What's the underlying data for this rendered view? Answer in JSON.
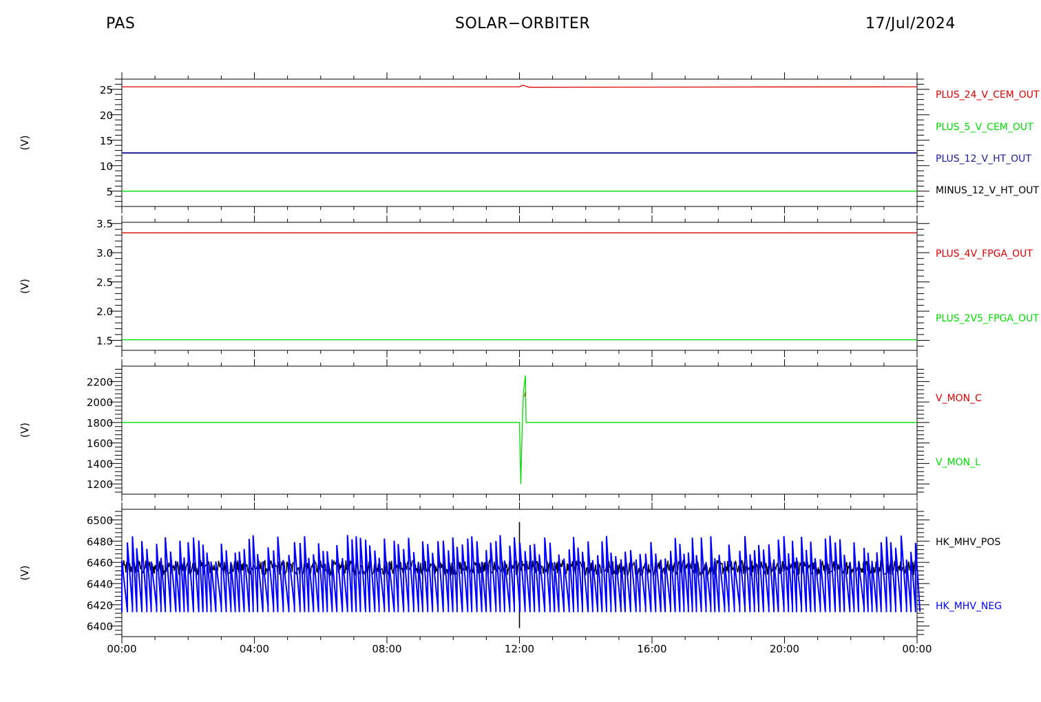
{
  "header": {
    "instrument": "PAS",
    "mission": "SOLAR−ORBITER",
    "date": "17/Jul/2024"
  },
  "chart_data": [
    {
      "type": "line",
      "ylabel": "(V)",
      "ylim": [
        2,
        27
      ],
      "yticks": [
        5,
        10,
        15,
        20,
        25
      ],
      "x_ticks": [
        "00:00",
        "04:00",
        "08:00",
        "12:00",
        "16:00",
        "20:00",
        "00:00"
      ],
      "series": [
        {
          "name": "PLUS_24_V_CEM_OUT",
          "color": "#dd0000",
          "x": [
            0,
            12,
            12.1,
            12.3,
            24
          ],
          "values": [
            25.5,
            25.5,
            25.8,
            25.4,
            25.5
          ]
        },
        {
          "name": "PLUS_5_V_CEM_OUT",
          "color": "#00dd00",
          "x": [
            0,
            24
          ],
          "values": [
            5.0,
            5.0
          ]
        },
        {
          "name": "PLUS_12_V_HT_OUT",
          "color": "#1c1c9c",
          "x": [
            0,
            24
          ],
          "values": [
            12.5,
            12.5
          ]
        },
        {
          "name": "MINUS_12_V_HT_OUT",
          "color": "#000000",
          "x": [],
          "values": []
        }
      ]
    },
    {
      "type": "line",
      "ylabel": "(V)",
      "ylim": [
        1.33,
        3.52
      ],
      "yticks": [
        1.5,
        2.0,
        2.5,
        3.0,
        3.5
      ],
      "ytick_labels": [
        "1.5",
        "2.0",
        "2.5",
        "3.0",
        "3.5"
      ],
      "x_ticks": [
        "00:00",
        "04:00",
        "08:00",
        "12:00",
        "16:00",
        "20:00",
        "00:00"
      ],
      "series": [
        {
          "name": "PLUS_4V_FPGA_OUT",
          "color": "#dd0000",
          "x": [
            0,
            24
          ],
          "values": [
            3.34,
            3.34
          ]
        },
        {
          "name": "PLUS_2V5_FPGA_OUT",
          "color": "#00dd00",
          "x": [
            0,
            24
          ],
          "values": [
            1.51,
            1.51
          ]
        }
      ]
    },
    {
      "type": "line",
      "ylabel": "(V)",
      "ylim": [
        1100,
        2350
      ],
      "yticks": [
        1200,
        1400,
        1600,
        1800,
        2000,
        2200
      ],
      "x_ticks": [
        "00:00",
        "04:00",
        "08:00",
        "12:00",
        "16:00",
        "20:00",
        "00:00"
      ],
      "series": [
        {
          "name": "V_MON_C",
          "color": "#dd0000",
          "x": [
            12.15,
            12.18
          ],
          "values": [
            2050,
            2100
          ]
        },
        {
          "name": "V_MON_L",
          "color": "#00dd00",
          "x": [
            0,
            12.0,
            12.04,
            12.08,
            12.12,
            12.18,
            12.2,
            12.25,
            24
          ],
          "values": [
            1800,
            1800,
            1200,
            1700,
            2100,
            2260,
            1800,
            1800,
            1800
          ]
        }
      ]
    },
    {
      "type": "line",
      "ylabel": "(V)",
      "ylim": [
        6390,
        6510
      ],
      "yticks": [
        6400,
        6420,
        6440,
        6460,
        6480,
        6500
      ],
      "x_ticks": [
        "00:00",
        "04:00",
        "08:00",
        "12:00",
        "16:00",
        "20:00",
        "00:00"
      ],
      "series": [
        {
          "name": "HK_MHV_POS",
          "color": "#000000",
          "values_approx": {
            "band_low": 6448,
            "band_high": 6462,
            "spike_max": 6498,
            "spike_min": 6398,
            "spike_time": 12.0
          }
        },
        {
          "name": "HK_MHV_NEG",
          "color": "#0000ff",
          "values_approx": {
            "low": 6413,
            "high_min": 6460,
            "high_max": 6486
          }
        }
      ]
    }
  ]
}
